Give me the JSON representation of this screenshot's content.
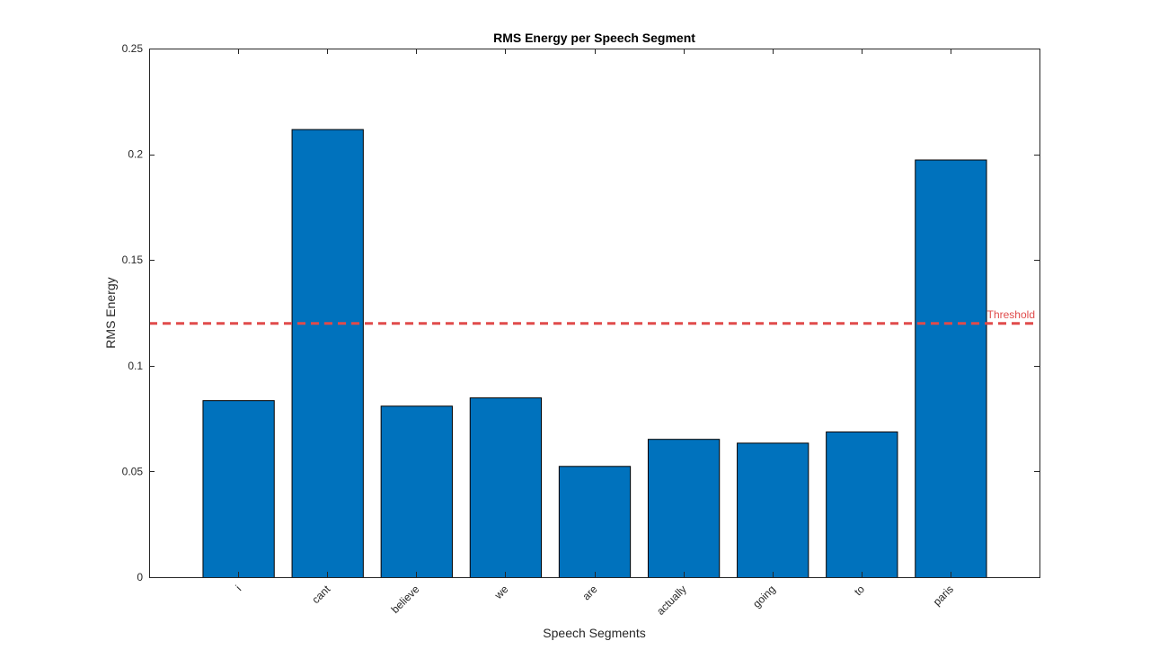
{
  "chart_data": {
    "type": "bar",
    "title": "RMS Energy per Speech Segment",
    "xlabel": "Speech Segments",
    "ylabel": "RMS Energy",
    "categories": [
      "i",
      "cant",
      "believe",
      "we",
      "are",
      "actually",
      "going",
      "to",
      "paris"
    ],
    "values": [
      0.0837,
      0.2119,
      0.0811,
      0.085,
      0.0526,
      0.0654,
      0.0636,
      0.0689,
      0.1975
    ],
    "ylim": [
      0,
      0.25
    ],
    "yticks": [
      0,
      0.05,
      0.1,
      0.15,
      0.2,
      0.25
    ],
    "ytick_labels": [
      "0",
      "0.05",
      "0.1",
      "0.15",
      "0.2",
      "0.25"
    ],
    "xlim": [
      0,
      10
    ],
    "grid": false,
    "bar_color": "#0072BD",
    "bar_edge_color": "#000000",
    "threshold": {
      "value": 0.12,
      "label": "Threshold",
      "color": "#E04B4B",
      "style": "dashed"
    }
  }
}
